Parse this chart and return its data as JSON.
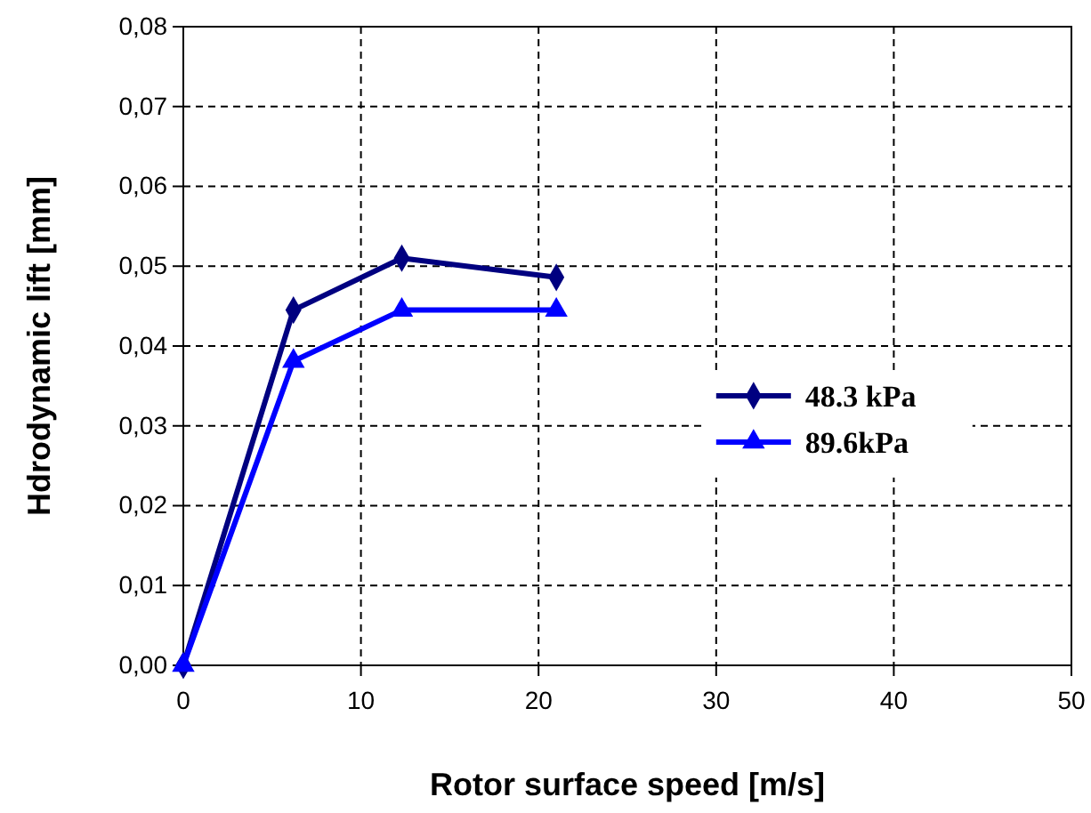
{
  "chart_data": {
    "type": "line",
    "xlabel": "Rotor surface speed [m/s]",
    "ylabel": "Hdrodynamic lift [mm]",
    "xlim": [
      0,
      50
    ],
    "xticks": [
      0,
      10,
      20,
      30,
      40,
      50
    ],
    "ylim": [
      0,
      0.08
    ],
    "yticks": [
      {
        "value": 0,
        "label": "0,00"
      },
      {
        "value": 0.01,
        "label": "0,01"
      },
      {
        "value": 0.02,
        "label": "0,02"
      },
      {
        "value": 0.03,
        "label": "0,03"
      },
      {
        "value": 0.04,
        "label": "0,04"
      },
      {
        "value": 0.05,
        "label": "0,05"
      },
      {
        "value": 0.06,
        "label": "0,06"
      },
      {
        "value": 0.07,
        "label": "0,07"
      },
      {
        "value": 0.08,
        "label": "0,08"
      }
    ],
    "grid": true,
    "legend": "right",
    "line_style": "solid",
    "series": [
      {
        "name": "48.3 kPa",
        "color": "#000080",
        "marker": "diamond",
        "x": [
          0,
          6.2,
          12.3,
          21
        ],
        "values": [
          0,
          0.0445,
          0.051,
          0.0486
        ]
      },
      {
        "name": "89.6kPa",
        "color": "#0000ff",
        "marker": "triangle",
        "x": [
          0,
          6.2,
          12.3,
          21
        ],
        "values": [
          0,
          0.0381,
          0.0445,
          0.0445
        ]
      }
    ]
  }
}
